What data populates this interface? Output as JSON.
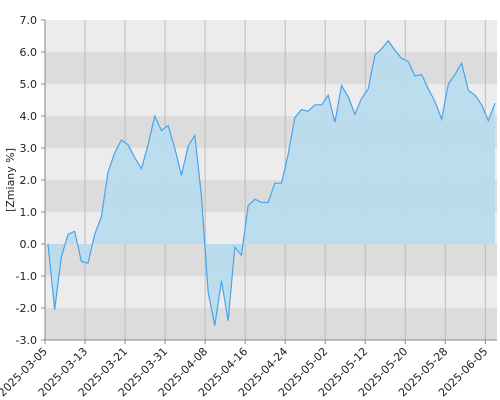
{
  "chart_data": {
    "type": "area",
    "y_label": "[Zmiany %]",
    "categories": [
      "2025-03-05",
      null,
      null,
      null,
      null,
      null,
      "2025-03-13",
      null,
      null,
      null,
      null,
      null,
      "2025-03-21",
      null,
      null,
      null,
      null,
      null,
      "2025-03-31",
      null,
      null,
      null,
      null,
      null,
      "2025-04-08",
      null,
      null,
      null,
      null,
      null,
      "2025-04-16",
      null,
      null,
      null,
      null,
      null,
      "2025-04-24",
      null,
      null,
      null,
      null,
      null,
      "2025-05-02",
      null,
      null,
      null,
      null,
      null,
      "2025-05-12",
      null,
      null,
      null,
      null,
      null,
      "2025-05-20",
      null,
      null,
      null,
      null,
      null,
      "2025-05-28",
      null,
      null,
      null,
      null,
      null,
      "2025-06-05",
      null
    ],
    "values": [
      0.0,
      -2.05,
      -0.4,
      0.3,
      0.4,
      -0.55,
      -0.6,
      0.3,
      0.85,
      2.25,
      2.85,
      3.25,
      3.1,
      2.7,
      2.35,
      3.1,
      4.0,
      3.55,
      3.7,
      3.0,
      2.15,
      3.05,
      3.4,
      1.5,
      -1.5,
      -2.55,
      -1.15,
      -2.4,
      -0.1,
      -0.35,
      1.2,
      1.4,
      1.3,
      1.3,
      1.9,
      1.9,
      2.8,
      3.95,
      4.2,
      4.15,
      4.35,
      4.35,
      4.65,
      3.8,
      4.95,
      4.6,
      4.05,
      4.55,
      4.85,
      5.9,
      6.1,
      6.35,
      6.05,
      5.8,
      5.7,
      5.25,
      5.3,
      4.85,
      4.45,
      3.9,
      5.0,
      5.3,
      5.65,
      4.8,
      4.65,
      4.35,
      3.85,
      4.4
    ],
    "color": "#4aa3e8",
    "fill_color": "#b6dcee",
    "ylim": [
      -3,
      7
    ],
    "yticks": [
      {
        "value": -3,
        "label": "-3.0"
      },
      {
        "value": -2,
        "label": "-2.0"
      },
      {
        "value": -1,
        "label": "-1.0"
      },
      {
        "value": 0,
        "label": "0.0"
      },
      {
        "value": 1,
        "label": "1.0"
      },
      {
        "value": 2,
        "label": "2.0"
      },
      {
        "value": 3,
        "label": "3.0"
      },
      {
        "value": 4,
        "label": "4.0"
      },
      {
        "value": 5,
        "label": "5.0"
      },
      {
        "value": 6,
        "label": "6.0"
      },
      {
        "value": 7,
        "label": "7.0"
      }
    ],
    "grid": true
  }
}
